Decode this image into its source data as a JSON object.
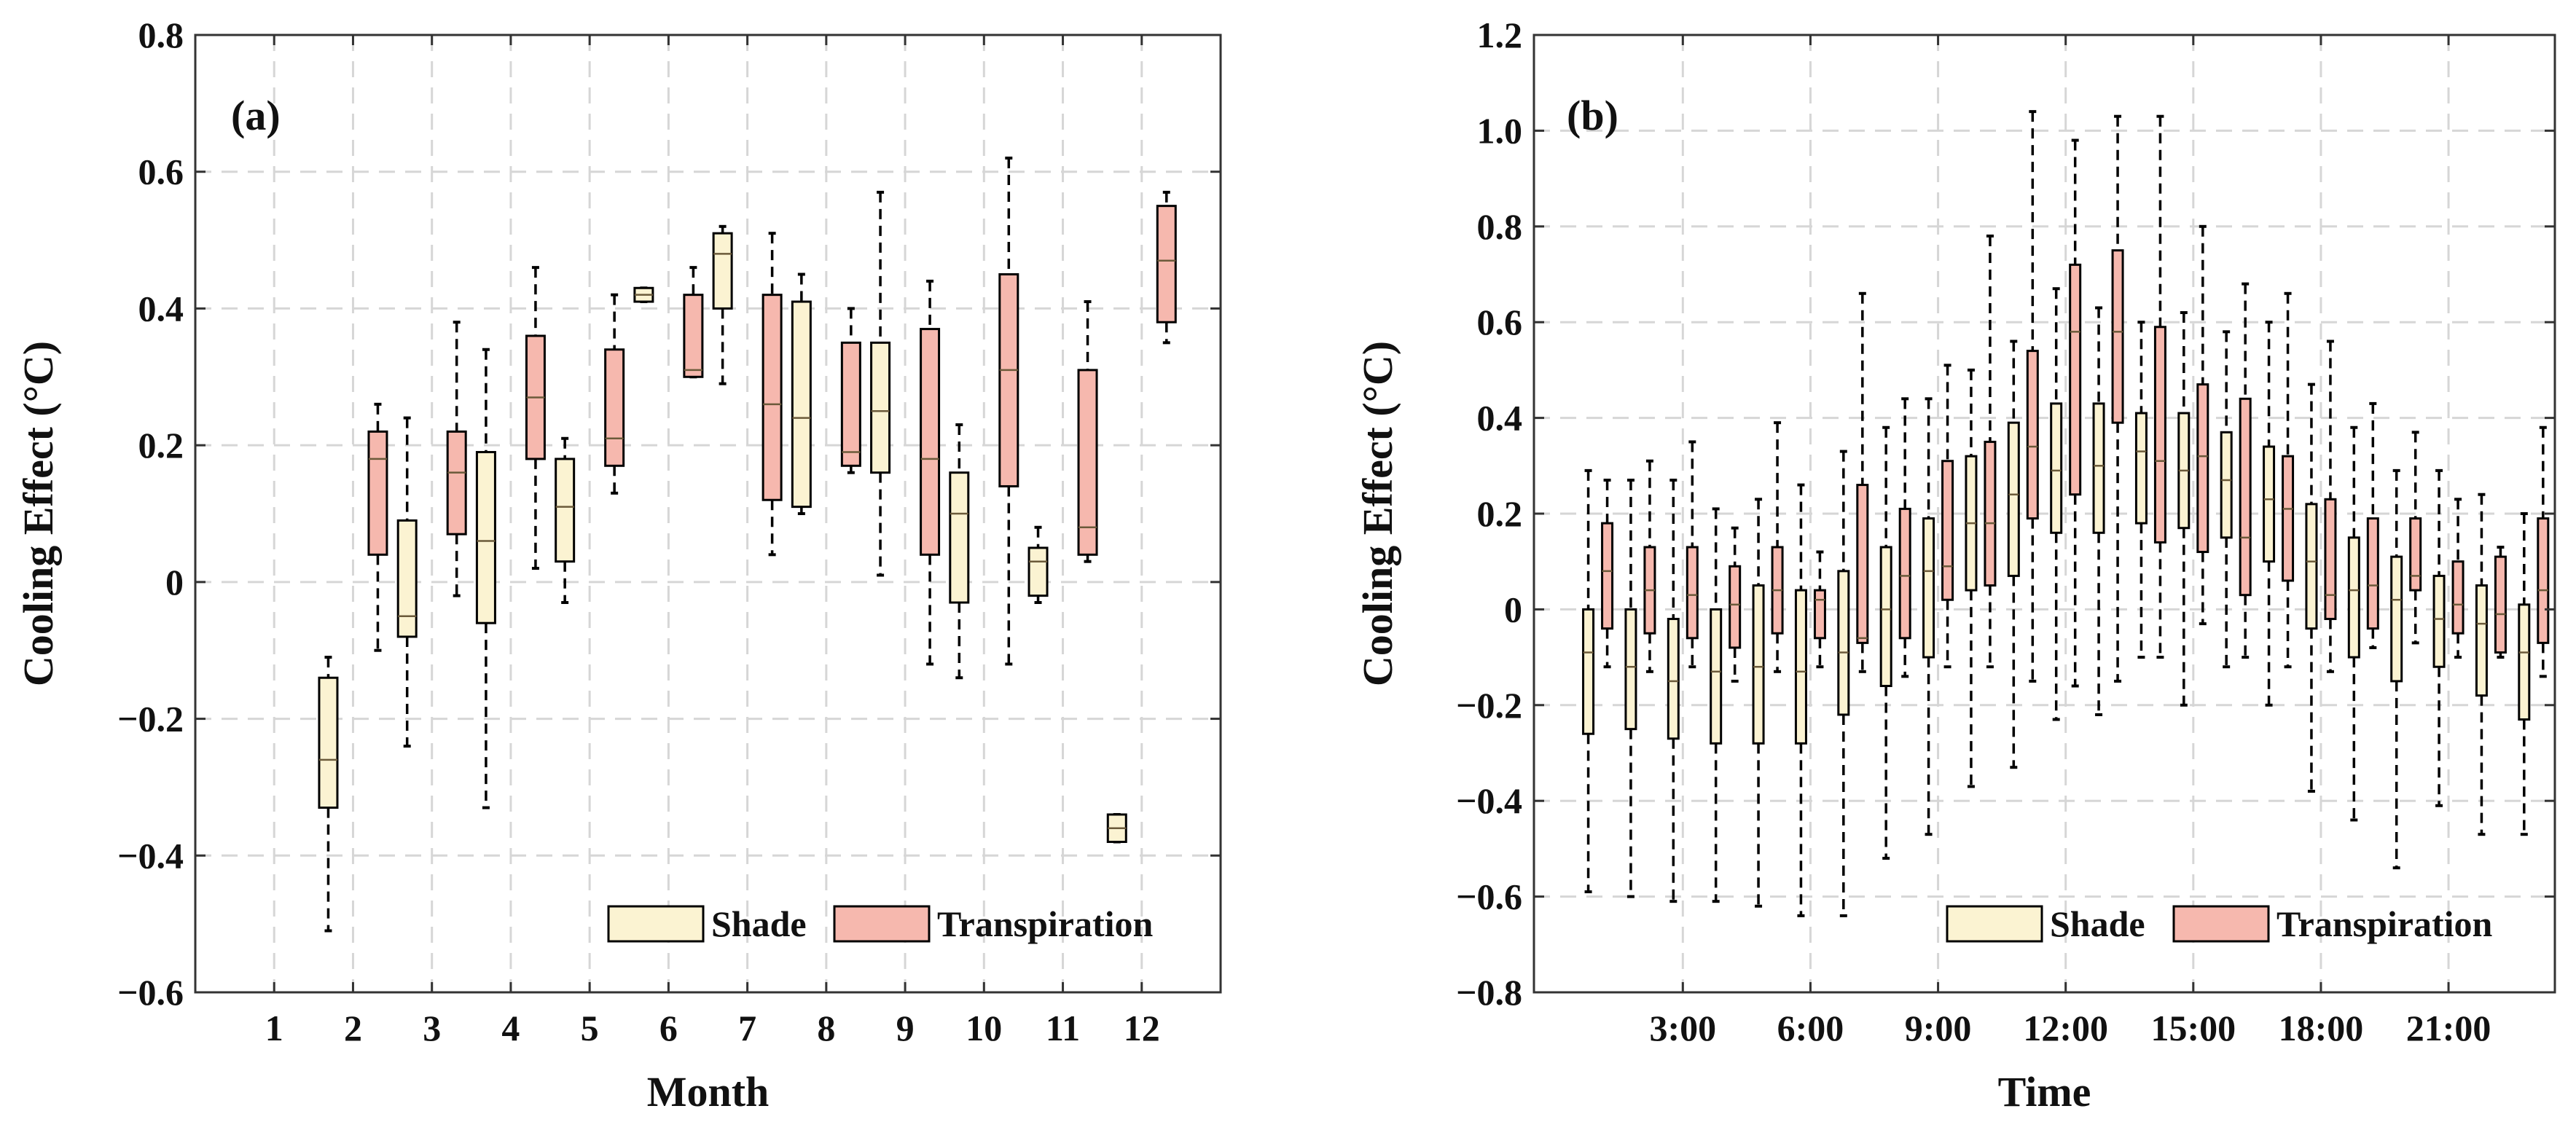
{
  "colors": {
    "shade": "#fbf3d2",
    "transpiration": "#f6b8ae",
    "grid": "#d6d6d6",
    "axis": "#333333"
  },
  "chart_data": [
    {
      "type": "boxplot",
      "panel_label": "(a)",
      "xlabel": "Month",
      "ylabel": "Cooling Effect (°C)",
      "ylim": [
        -0.6,
        0.8
      ],
      "yticks": [
        "−0.6",
        "−0.4",
        "−0.2",
        "0",
        "0.2",
        "0.4",
        "0.6",
        "0.8"
      ],
      "yticks_values": [
        -0.6,
        -0.4,
        -0.2,
        0,
        0.2,
        0.4,
        0.6,
        0.8
      ],
      "categories": [
        "1",
        "2",
        "3",
        "4",
        "5",
        "6",
        "7",
        "8",
        "9",
        "10",
        "11",
        "12"
      ],
      "legend": [
        "Shade",
        "Transpiration"
      ],
      "legend_position": "bottom-right",
      "grid": true,
      "series": [
        {
          "name": "Shade",
          "boxes": [
            null,
            {
              "min": -0.51,
              "q1": -0.33,
              "median": -0.26,
              "q3": -0.14,
              "max": -0.11
            },
            {
              "min": -0.24,
              "q1": -0.08,
              "median": -0.05,
              "q3": 0.09,
              "max": 0.24
            },
            {
              "min": -0.33,
              "q1": -0.06,
              "median": 0.06,
              "q3": 0.19,
              "max": 0.34
            },
            {
              "min": -0.03,
              "q1": 0.03,
              "median": 0.11,
              "q3": 0.18,
              "max": 0.21
            },
            {
              "min": 0.41,
              "q1": 0.41,
              "median": 0.42,
              "q3": 0.43,
              "max": 0.43
            },
            {
              "min": 0.29,
              "q1": 0.4,
              "median": 0.48,
              "q3": 0.51,
              "max": 0.52
            },
            {
              "min": 0.1,
              "q1": 0.11,
              "median": 0.24,
              "q3": 0.41,
              "max": 0.45
            },
            {
              "min": 0.01,
              "q1": 0.16,
              "median": 0.25,
              "q3": 0.35,
              "max": 0.57
            },
            {
              "min": -0.14,
              "q1": -0.03,
              "median": 0.1,
              "q3": 0.16,
              "max": 0.23
            },
            {
              "min": -0.03,
              "q1": -0.02,
              "median": 0.03,
              "q3": 0.05,
              "max": 0.08
            },
            {
              "min": -0.38,
              "q1": -0.38,
              "median": -0.36,
              "q3": -0.34,
              "max": -0.34
            }
          ]
        },
        {
          "name": "Transpiration",
          "boxes": [
            null,
            {
              "min": -0.1,
              "q1": 0.04,
              "median": 0.18,
              "q3": 0.22,
              "max": 0.26
            },
            {
              "min": -0.02,
              "q1": 0.07,
              "median": 0.16,
              "q3": 0.22,
              "max": 0.38
            },
            {
              "min": 0.02,
              "q1": 0.18,
              "median": 0.27,
              "q3": 0.36,
              "max": 0.46
            },
            {
              "min": 0.13,
              "q1": 0.17,
              "median": 0.21,
              "q3": 0.34,
              "max": 0.42
            },
            {
              "min": 0.3,
              "q1": 0.3,
              "median": 0.31,
              "q3": 0.42,
              "max": 0.46
            },
            {
              "min": 0.04,
              "q1": 0.12,
              "median": 0.26,
              "q3": 0.42,
              "max": 0.51
            },
            {
              "min": 0.16,
              "q1": 0.17,
              "median": 0.19,
              "q3": 0.35,
              "max": 0.4
            },
            {
              "min": -0.12,
              "q1": 0.04,
              "median": 0.18,
              "q3": 0.37,
              "max": 0.44
            },
            {
              "min": -0.12,
              "q1": 0.14,
              "median": 0.31,
              "q3": 0.45,
              "max": 0.62
            },
            {
              "min": 0.03,
              "q1": 0.04,
              "median": 0.08,
              "q3": 0.31,
              "max": 0.41
            },
            {
              "min": 0.35,
              "q1": 0.38,
              "median": 0.47,
              "q3": 0.55,
              "max": 0.57
            }
          ]
        }
      ]
    },
    {
      "type": "boxplot",
      "panel_label": "(b)",
      "xlabel": "Time",
      "ylabel": "Cooling Effect (°C)",
      "ylim": [
        -0.8,
        1.2
      ],
      "yticks": [
        "−0.8",
        "−0.6",
        "−0.4",
        "−0.2",
        "0",
        "0.2",
        "0.4",
        "0.6",
        "0.8",
        "1.0",
        "1.2"
      ],
      "yticks_values": [
        -0.8,
        -0.6,
        -0.4,
        -0.2,
        0,
        0.2,
        0.4,
        0.6,
        0.8,
        1.0,
        1.2
      ],
      "xlim": [
        -0.5,
        23.5
      ],
      "xtick_positions": [
        3,
        6,
        9,
        12,
        15,
        18,
        21
      ],
      "xtick_labels": [
        "3:00",
        "6:00",
        "9:00",
        "12:00",
        "15:00",
        "18:00",
        "21:00"
      ],
      "hours": [
        1,
        2,
        3,
        4,
        5,
        6,
        7,
        8,
        9,
        10,
        11,
        12,
        13,
        14,
        15,
        16,
        17,
        18,
        19,
        20,
        21,
        22,
        23
      ],
      "legend": [
        "Shade",
        "Transpiration"
      ],
      "legend_position": "bottom-right",
      "grid": true,
      "series": [
        {
          "name": "Shade",
          "boxes": [
            {
              "min": -0.59,
              "q1": -0.26,
              "median": -0.09,
              "q3": 0.0,
              "max": 0.29
            },
            {
              "min": -0.6,
              "q1": -0.25,
              "median": -0.12,
              "q3": 0.0,
              "max": 0.27
            },
            {
              "min": -0.61,
              "q1": -0.27,
              "median": -0.15,
              "q3": -0.02,
              "max": 0.27
            },
            {
              "min": -0.61,
              "q1": -0.28,
              "median": -0.13,
              "q3": 0.0,
              "max": 0.21
            },
            {
              "min": -0.62,
              "q1": -0.28,
              "median": -0.12,
              "q3": 0.05,
              "max": 0.23
            },
            {
              "min": -0.64,
              "q1": -0.28,
              "median": -0.13,
              "q3": 0.04,
              "max": 0.26
            },
            {
              "min": -0.64,
              "q1": -0.22,
              "median": -0.09,
              "q3": 0.08,
              "max": 0.33
            },
            {
              "min": -0.52,
              "q1": -0.16,
              "median": 0.0,
              "q3": 0.13,
              "max": 0.38
            },
            {
              "min": -0.47,
              "q1": -0.1,
              "median": 0.08,
              "q3": 0.19,
              "max": 0.44
            },
            {
              "min": -0.37,
              "q1": 0.04,
              "median": 0.18,
              "q3": 0.32,
              "max": 0.5
            },
            {
              "min": -0.33,
              "q1": 0.07,
              "median": 0.24,
              "q3": 0.39,
              "max": 0.56
            },
            {
              "min": -0.23,
              "q1": 0.16,
              "median": 0.29,
              "q3": 0.43,
              "max": 0.67
            },
            {
              "min": -0.22,
              "q1": 0.16,
              "median": 0.3,
              "q3": 0.43,
              "max": 0.63
            },
            {
              "min": -0.1,
              "q1": 0.18,
              "median": 0.33,
              "q3": 0.41,
              "max": 0.6
            },
            {
              "min": -0.2,
              "q1": 0.17,
              "median": 0.29,
              "q3": 0.41,
              "max": 0.62
            },
            {
              "min": -0.12,
              "q1": 0.15,
              "median": 0.27,
              "q3": 0.37,
              "max": 0.58
            },
            {
              "min": -0.2,
              "q1": 0.1,
              "median": 0.23,
              "q3": 0.34,
              "max": 0.6
            },
            {
              "min": -0.38,
              "q1": -0.04,
              "median": 0.1,
              "q3": 0.22,
              "max": 0.47
            },
            {
              "min": -0.44,
              "q1": -0.1,
              "median": 0.04,
              "q3": 0.15,
              "max": 0.38
            },
            {
              "min": -0.54,
              "q1": -0.15,
              "median": 0.02,
              "q3": 0.11,
              "max": 0.29
            },
            {
              "min": -0.41,
              "q1": -0.12,
              "median": -0.02,
              "q3": 0.07,
              "max": 0.29
            },
            {
              "min": -0.47,
              "q1": -0.18,
              "median": -0.03,
              "q3": 0.05,
              "max": 0.24
            },
            {
              "min": -0.47,
              "q1": -0.23,
              "median": -0.09,
              "q3": 0.01,
              "max": 0.2
            }
          ]
        },
        {
          "name": "Transpiration",
          "boxes": [
            {
              "min": -0.12,
              "q1": -0.04,
              "median": 0.08,
              "q3": 0.18,
              "max": 0.27
            },
            {
              "min": -0.13,
              "q1": -0.05,
              "median": 0.04,
              "q3": 0.13,
              "max": 0.31
            },
            {
              "min": -0.12,
              "q1": -0.06,
              "median": 0.03,
              "q3": 0.13,
              "max": 0.35
            },
            {
              "min": -0.15,
              "q1": -0.08,
              "median": 0.01,
              "q3": 0.09,
              "max": 0.17
            },
            {
              "min": -0.13,
              "q1": -0.05,
              "median": 0.04,
              "q3": 0.13,
              "max": 0.39
            },
            {
              "min": -0.12,
              "q1": -0.06,
              "median": 0.02,
              "q3": 0.04,
              "max": 0.12
            },
            {
              "min": -0.13,
              "q1": -0.07,
              "median": -0.06,
              "q3": 0.26,
              "max": 0.66
            },
            {
              "min": -0.14,
              "q1": -0.06,
              "median": 0.07,
              "q3": 0.21,
              "max": 0.44
            },
            {
              "min": -0.12,
              "q1": 0.02,
              "median": 0.09,
              "q3": 0.31,
              "max": 0.51
            },
            {
              "min": -0.12,
              "q1": 0.05,
              "median": 0.18,
              "q3": 0.35,
              "max": 0.78
            },
            {
              "min": -0.15,
              "q1": 0.19,
              "median": 0.34,
              "q3": 0.54,
              "max": 1.04
            },
            {
              "min": -0.16,
              "q1": 0.24,
              "median": 0.58,
              "q3": 0.72,
              "max": 0.98
            },
            {
              "min": -0.15,
              "q1": 0.39,
              "median": 0.58,
              "q3": 0.75,
              "max": 1.03
            },
            {
              "min": -0.1,
              "q1": 0.14,
              "median": 0.31,
              "q3": 0.59,
              "max": 1.03
            },
            {
              "min": -0.03,
              "q1": 0.12,
              "median": 0.32,
              "q3": 0.47,
              "max": 0.8
            },
            {
              "min": -0.1,
              "q1": 0.03,
              "median": 0.15,
              "q3": 0.44,
              "max": 0.68
            },
            {
              "min": -0.12,
              "q1": 0.06,
              "median": 0.21,
              "q3": 0.32,
              "max": 0.66
            },
            {
              "min": -0.13,
              "q1": -0.02,
              "median": 0.03,
              "q3": 0.23,
              "max": 0.56
            },
            {
              "min": -0.08,
              "q1": -0.04,
              "median": 0.05,
              "q3": 0.19,
              "max": 0.43
            },
            {
              "min": -0.07,
              "q1": 0.04,
              "median": 0.07,
              "q3": 0.19,
              "max": 0.37
            },
            {
              "min": -0.1,
              "q1": -0.05,
              "median": 0.01,
              "q3": 0.1,
              "max": 0.23
            },
            {
              "min": -0.1,
              "q1": -0.09,
              "median": -0.01,
              "q3": 0.11,
              "max": 0.13
            },
            {
              "min": -0.14,
              "q1": -0.07,
              "median": 0.04,
              "q3": 0.19,
              "max": 0.38
            }
          ]
        }
      ]
    }
  ]
}
